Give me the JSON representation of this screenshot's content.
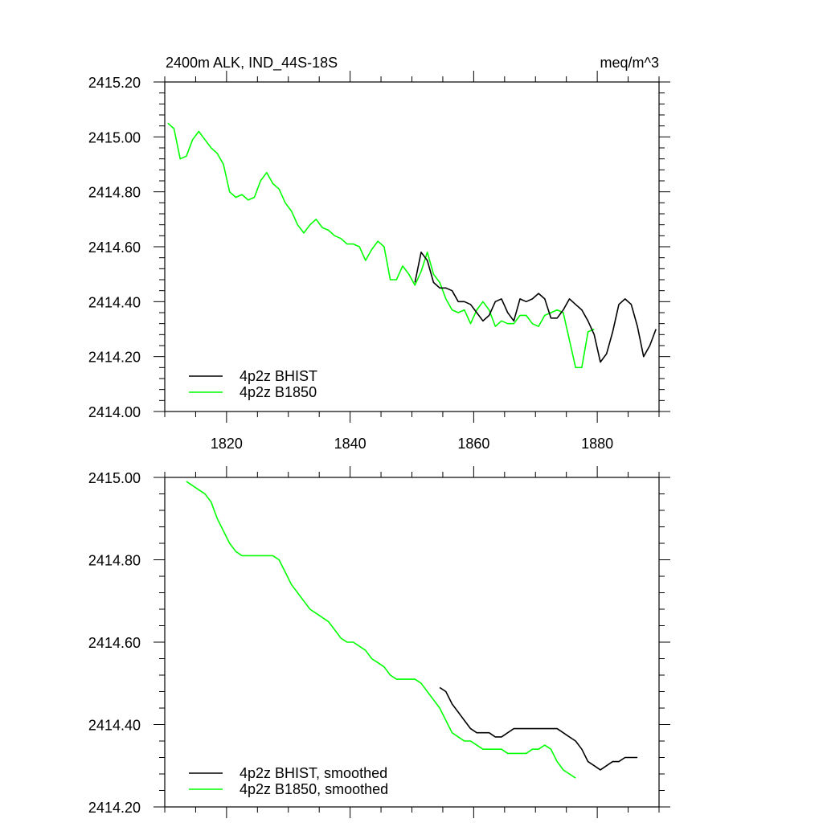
{
  "chart_data": [
    {
      "type": "line",
      "title_left": "2400m ALK, IND_44S-18S",
      "title_right": "meq/m^3",
      "xlim": [
        1810,
        1890
      ],
      "ylim": [
        2414.0,
        2415.2
      ],
      "x_ticks": [
        1820,
        1840,
        1860,
        1880
      ],
      "y_ticks": [
        "2414.00",
        "2414.20",
        "2414.40",
        "2414.60",
        "2414.80",
        "2415.00",
        "2415.20"
      ],
      "legend_position": "bottom-left",
      "series": [
        {
          "name": "4p2z BHIST",
          "color": "#000000",
          "x": [
            1850.5,
            1851.5,
            1852.5,
            1853.5,
            1854.5,
            1855.5,
            1856.5,
            1857.5,
            1858.5,
            1859.5,
            1860.5,
            1861.5,
            1862.5,
            1863.5,
            1864.5,
            1865.5,
            1866.5,
            1867.5,
            1868.5,
            1869.5,
            1870.5,
            1871.5,
            1872.5,
            1873.5,
            1874.5,
            1875.5,
            1876.5,
            1877.5,
            1878.5,
            1879.5,
            1880.5,
            1881.5,
            1882.5,
            1883.5,
            1884.5,
            1885.5,
            1886.5,
            1887.5,
            1888.5,
            1889.5
          ],
          "values": [
            2414.47,
            2414.58,
            2414.55,
            2414.47,
            2414.45,
            2414.45,
            2414.44,
            2414.4,
            2414.4,
            2414.39,
            2414.36,
            2414.33,
            2414.35,
            2414.4,
            2414.41,
            2414.36,
            2414.33,
            2414.41,
            2414.4,
            2414.41,
            2414.43,
            2414.41,
            2414.34,
            2414.34,
            2414.37,
            2414.41,
            2414.39,
            2414.37,
            2414.33,
            2414.28,
            2414.18,
            2414.21,
            2414.29,
            2414.39,
            2414.41,
            2414.39,
            2414.31,
            2414.2,
            2414.24,
            2414.3
          ]
        },
        {
          "name": "4p2z B1850",
          "color": "#00ff00",
          "x": [
            1810.5,
            1811.5,
            1812.5,
            1813.5,
            1814.5,
            1815.5,
            1816.5,
            1817.5,
            1818.5,
            1819.5,
            1820.5,
            1821.5,
            1822.5,
            1823.5,
            1824.5,
            1825.5,
            1826.5,
            1827.5,
            1828.5,
            1829.5,
            1830.5,
            1831.5,
            1832.5,
            1833.5,
            1834.5,
            1835.5,
            1836.5,
            1837.5,
            1838.5,
            1839.5,
            1840.5,
            1841.5,
            1842.5,
            1843.5,
            1844.5,
            1845.5,
            1846.5,
            1847.5,
            1848.5,
            1849.5,
            1850.5,
            1851.5,
            1852.5,
            1853.5,
            1854.5,
            1855.5,
            1856.5,
            1857.5,
            1858.5,
            1859.5,
            1860.5,
            1861.5,
            1862.5,
            1863.5,
            1864.5,
            1865.5,
            1866.5,
            1867.5,
            1868.5,
            1869.5,
            1870.5,
            1871.5,
            1872.5,
            1873.5,
            1874.5,
            1875.5,
            1876.5,
            1877.5,
            1878.5,
            1879.5
          ],
          "values": [
            2415.05,
            2415.03,
            2414.92,
            2414.93,
            2414.99,
            2415.02,
            2414.99,
            2414.96,
            2414.94,
            2414.9,
            2414.8,
            2414.78,
            2414.79,
            2414.77,
            2414.78,
            2414.84,
            2414.87,
            2414.83,
            2414.81,
            2414.76,
            2414.73,
            2414.68,
            2414.65,
            2414.68,
            2414.7,
            2414.67,
            2414.66,
            2414.64,
            2414.63,
            2414.61,
            2414.61,
            2414.6,
            2414.55,
            2414.59,
            2414.62,
            2414.6,
            2414.48,
            2414.48,
            2414.53,
            2414.5,
            2414.46,
            2414.51,
            2414.58,
            2414.5,
            2414.47,
            2414.41,
            2414.37,
            2414.36,
            2414.37,
            2414.32,
            2414.37,
            2414.4,
            2414.37,
            2414.31,
            2414.33,
            2414.32,
            2414.32,
            2414.35,
            2414.35,
            2414.32,
            2414.31,
            2414.35,
            2414.36,
            2414.37,
            2414.36,
            2414.26,
            2414.16,
            2414.16,
            2414.29,
            2414.3
          ]
        }
      ]
    },
    {
      "type": "line",
      "xlim": [
        1810,
        1890
      ],
      "ylim": [
        2414.2,
        2415.0
      ],
      "x_ticks": [
        1820,
        1840,
        1860,
        1880
      ],
      "y_ticks": [
        "2414.20",
        "2414.40",
        "2414.60",
        "2414.80",
        "2415.00"
      ],
      "legend_position": "bottom-left",
      "series": [
        {
          "name": "4p2z BHIST, smoothed",
          "color": "#000000",
          "x": [
            1854.5,
            1855.5,
            1856.5,
            1857.5,
            1858.5,
            1859.5,
            1860.5,
            1861.5,
            1862.5,
            1863.5,
            1864.5,
            1865.5,
            1866.5,
            1867.5,
            1868.5,
            1869.5,
            1870.5,
            1871.5,
            1872.5,
            1873.5,
            1874.5,
            1875.5,
            1876.5,
            1877.5,
            1878.5,
            1879.5,
            1880.5,
            1881.5,
            1882.5,
            1883.5,
            1884.5,
            1885.5,
            1886.5
          ],
          "values": [
            2414.49,
            2414.48,
            2414.45,
            2414.43,
            2414.41,
            2414.39,
            2414.38,
            2414.38,
            2414.38,
            2414.37,
            2414.37,
            2414.38,
            2414.39,
            2414.39,
            2414.39,
            2414.39,
            2414.39,
            2414.39,
            2414.39,
            2414.39,
            2414.38,
            2414.37,
            2414.36,
            2414.34,
            2414.31,
            2414.3,
            2414.29,
            2414.3,
            2414.31,
            2414.31,
            2414.32,
            2414.32,
            2414.32
          ]
        },
        {
          "name": "4p2z B1850, smoothed",
          "color": "#00ff00",
          "x": [
            1813.5,
            1814.5,
            1815.5,
            1816.5,
            1817.5,
            1818.5,
            1819.5,
            1820.5,
            1821.5,
            1822.5,
            1823.5,
            1824.5,
            1825.5,
            1826.5,
            1827.5,
            1828.5,
            1829.5,
            1830.5,
            1831.5,
            1832.5,
            1833.5,
            1834.5,
            1835.5,
            1836.5,
            1837.5,
            1838.5,
            1839.5,
            1840.5,
            1841.5,
            1842.5,
            1843.5,
            1844.5,
            1845.5,
            1846.5,
            1847.5,
            1848.5,
            1849.5,
            1850.5,
            1851.5,
            1852.5,
            1853.5,
            1854.5,
            1855.5,
            1856.5,
            1857.5,
            1858.5,
            1859.5,
            1860.5,
            1861.5,
            1862.5,
            1863.5,
            1864.5,
            1865.5,
            1866.5,
            1867.5,
            1868.5,
            1869.5,
            1870.5,
            1871.5,
            1872.5,
            1873.5,
            1874.5,
            1875.5,
            1876.5
          ],
          "values": [
            2414.99,
            2414.98,
            2414.97,
            2414.96,
            2414.94,
            2414.9,
            2414.87,
            2414.84,
            2414.82,
            2414.81,
            2414.81,
            2414.81,
            2414.81,
            2414.81,
            2414.81,
            2414.8,
            2414.77,
            2414.74,
            2414.72,
            2414.7,
            2414.68,
            2414.67,
            2414.66,
            2414.65,
            2414.63,
            2414.61,
            2414.6,
            2414.6,
            2414.59,
            2414.58,
            2414.56,
            2414.55,
            2414.54,
            2414.52,
            2414.51,
            2414.51,
            2414.51,
            2414.51,
            2414.5,
            2414.48,
            2414.46,
            2414.44,
            2414.41,
            2414.38,
            2414.37,
            2414.36,
            2414.36,
            2414.35,
            2414.34,
            2414.34,
            2414.34,
            2414.34,
            2414.33,
            2414.33,
            2414.33,
            2414.33,
            2414.34,
            2414.34,
            2414.35,
            2414.34,
            2414.31,
            2414.29,
            2414.28,
            2414.27
          ]
        }
      ]
    }
  ]
}
